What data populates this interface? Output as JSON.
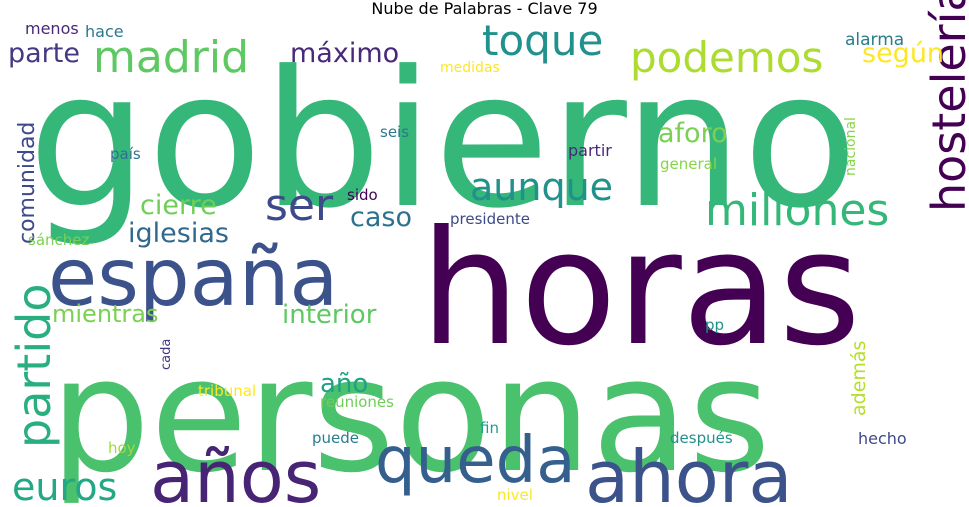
{
  "chart_data": {
    "type": "wordcloud",
    "title": "Nube de Palabras - Clave 79",
    "words": [
      {
        "text": "gobierno",
        "color": "#35b779"
      },
      {
        "text": "horas",
        "color": "#440154"
      },
      {
        "text": "personas",
        "color": "#4ac16d"
      },
      {
        "text": "españa",
        "color": "#3b528b"
      },
      {
        "text": "años",
        "color": "#482475"
      },
      {
        "text": "ahora",
        "color": "#3b528b"
      },
      {
        "text": "queda",
        "color": "#355f8d"
      },
      {
        "text": "madrid",
        "color": "#5ec962"
      },
      {
        "text": "podemos",
        "color": "#addc30"
      },
      {
        "text": "toque",
        "color": "#21918c"
      },
      {
        "text": "millones",
        "color": "#35b779"
      },
      {
        "text": "aunque",
        "color": "#21918c"
      },
      {
        "text": "ser",
        "color": "#3e4989"
      },
      {
        "text": "hostelería",
        "color": "#440154"
      },
      {
        "text": "partido",
        "color": "#29af7f"
      },
      {
        "text": "euros",
        "color": "#22a884"
      },
      {
        "text": "máximo",
        "color": "#482878"
      },
      {
        "text": "parte",
        "color": "#443983"
      },
      {
        "text": "según",
        "color": "#fde725"
      },
      {
        "text": "aforo",
        "color": "#7ad151"
      },
      {
        "text": "cierre",
        "color": "#6ece58"
      },
      {
        "text": "iglesias",
        "color": "#31688e"
      },
      {
        "text": "caso",
        "color": "#2c728e"
      },
      {
        "text": "comunidad",
        "color": "#3e4989"
      },
      {
        "text": "interior",
        "color": "#5ec962"
      },
      {
        "text": "mientras",
        "color": "#7ad151"
      },
      {
        "text": "año",
        "color": "#1fa188"
      },
      {
        "text": "además",
        "color": "#b5de2b"
      },
      {
        "text": "alarma",
        "color": "#287d8e"
      },
      {
        "text": "menos",
        "color": "#482878"
      },
      {
        "text": "hace",
        "color": "#2a788e"
      },
      {
        "text": "medidas",
        "color": "#fde725"
      },
      {
        "text": "seis",
        "color": "#2a788e"
      },
      {
        "text": "partir",
        "color": "#482878"
      },
      {
        "text": "general",
        "color": "#86d549"
      },
      {
        "text": "país",
        "color": "#2c728e"
      },
      {
        "text": "nacional",
        "color": "#86d549"
      },
      {
        "text": "sido",
        "color": "#440154"
      },
      {
        "text": "presidente",
        "color": "#3e4989"
      },
      {
        "text": "sánchez",
        "color": "#7ad151"
      },
      {
        "text": "pp",
        "color": "#21918c"
      },
      {
        "text": "cada",
        "color": "#443983"
      },
      {
        "text": "tribunal",
        "color": "#fde725"
      },
      {
        "text": "reuniones",
        "color": "#6ece58"
      },
      {
        "text": "hoy",
        "color": "#a0da39"
      },
      {
        "text": "puede",
        "color": "#287d8e"
      },
      {
        "text": "fin",
        "color": "#1f9e89"
      },
      {
        "text": "después",
        "color": "#21918c"
      },
      {
        "text": "hecho",
        "color": "#3e4989"
      },
      {
        "text": "nivel",
        "color": "#fde725"
      }
    ]
  }
}
